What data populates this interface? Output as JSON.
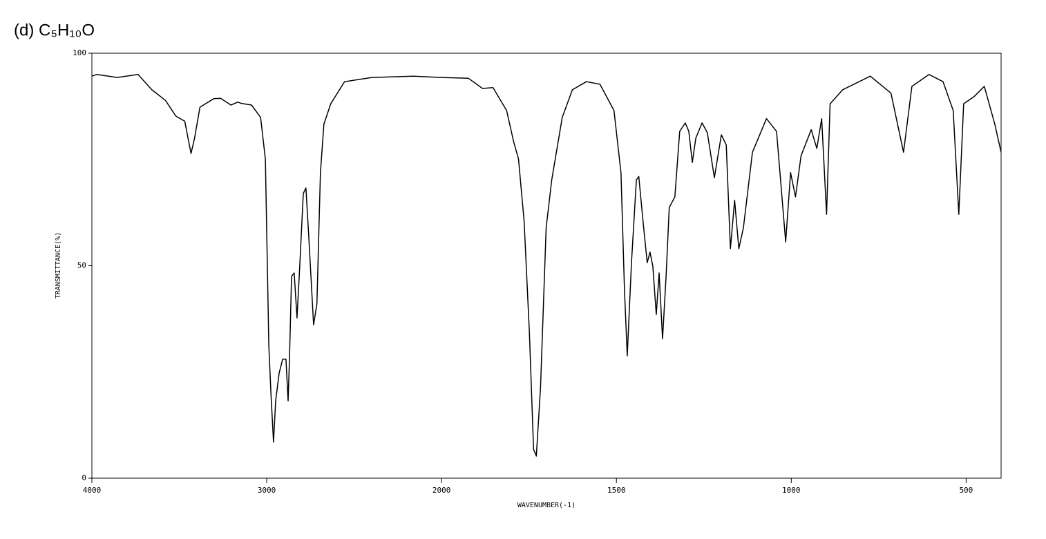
{
  "chart_data": {
    "type": "line",
    "title": "(d)  C₅H₁₀O",
    "x_label": "WAVENUMBER(-1)",
    "y_label": "TRANSMITTANCE(%)",
    "xlim": [
      4000,
      400
    ],
    "xbreak": 2000,
    "xticks": [
      4000,
      3000,
      2000,
      1500,
      1000,
      500
    ],
    "ylim": [
      0,
      100
    ],
    "yticks": [
      0,
      50,
      100
    ],
    "grid": false,
    "x": [
      4000,
      3972,
      3854,
      3736,
      3657,
      3579,
      3520,
      3469,
      3433,
      3413,
      3382,
      3303,
      3264,
      3205,
      3165,
      3146,
      3087,
      3035,
      3008,
      2988,
      2976,
      2961,
      2949,
      2929,
      2909,
      2890,
      2878,
      2870,
      2858,
      2843,
      2827,
      2811,
      2791,
      2776,
      2760,
      2732,
      2713,
      2693,
      2673,
      2634,
      2555,
      2398,
      2161,
      2000,
      1923,
      1883,
      1853,
      1814,
      1794,
      1780,
      1764,
      1749,
      1737,
      1729,
      1717,
      1701,
      1685,
      1655,
      1626,
      1586,
      1547,
      1507,
      1487,
      1477,
      1469,
      1457,
      1443,
      1436,
      1424,
      1412,
      1404,
      1396,
      1386,
      1378,
      1368,
      1358,
      1349,
      1333,
      1319,
      1303,
      1293,
      1283,
      1273,
      1255,
      1240,
      1220,
      1200,
      1186,
      1174,
      1162,
      1150,
      1137,
      1111,
      1071,
      1042,
      1016,
      1002,
      988,
      972,
      943,
      927,
      913,
      899,
      889,
      853,
      774,
      715,
      679,
      655,
      606,
      566,
      537,
      521,
      507,
      477,
      448,
      418,
      400
    ],
    "series": [
      {
        "color": "#000000",
        "values": [
          94.6,
          95,
          94.3,
          95,
          91.4,
          88.9,
          85.2,
          84,
          76.4,
          80,
          87.3,
          89.3,
          89.4,
          87.8,
          88.5,
          88.2,
          87.8,
          84.9,
          75.1,
          31.2,
          19.8,
          8.5,
          18.2,
          24.7,
          28,
          28,
          18.2,
          28,
          47.5,
          48.3,
          37.7,
          50,
          67,
          68.3,
          57.2,
          36.1,
          41,
          71.9,
          83.3,
          88.1,
          93.3,
          94.3,
          94.6,
          94.3,
          94.1,
          91.7,
          91.9,
          86.5,
          79.2,
          75.1,
          60.5,
          34.5,
          6.8,
          5.2,
          21.5,
          58.9,
          70.2,
          84.9,
          91.4,
          93.3,
          92.7,
          86.5,
          71.9,
          44.2,
          28.8,
          50.7,
          70.2,
          71,
          60.5,
          50.7,
          53.2,
          49.9,
          38.5,
          48.3,
          32.8,
          47.5,
          63.7,
          66.2,
          81.6,
          83.6,
          81.6,
          74.3,
          80,
          83.6,
          81.3,
          70.7,
          80.8,
          78.4,
          54,
          65.4,
          54,
          58.9,
          76.7,
          84.6,
          81.6,
          55.6,
          71.9,
          66.2,
          75.9,
          82,
          77.6,
          84.6,
          62.1,
          88.1,
          91.4,
          94.6,
          90.6,
          76.7,
          92.2,
          95,
          93.3,
          86.5,
          62.1,
          88.1,
          89.8,
          92.2,
          83.3,
          76.7
        ]
      }
    ]
  }
}
